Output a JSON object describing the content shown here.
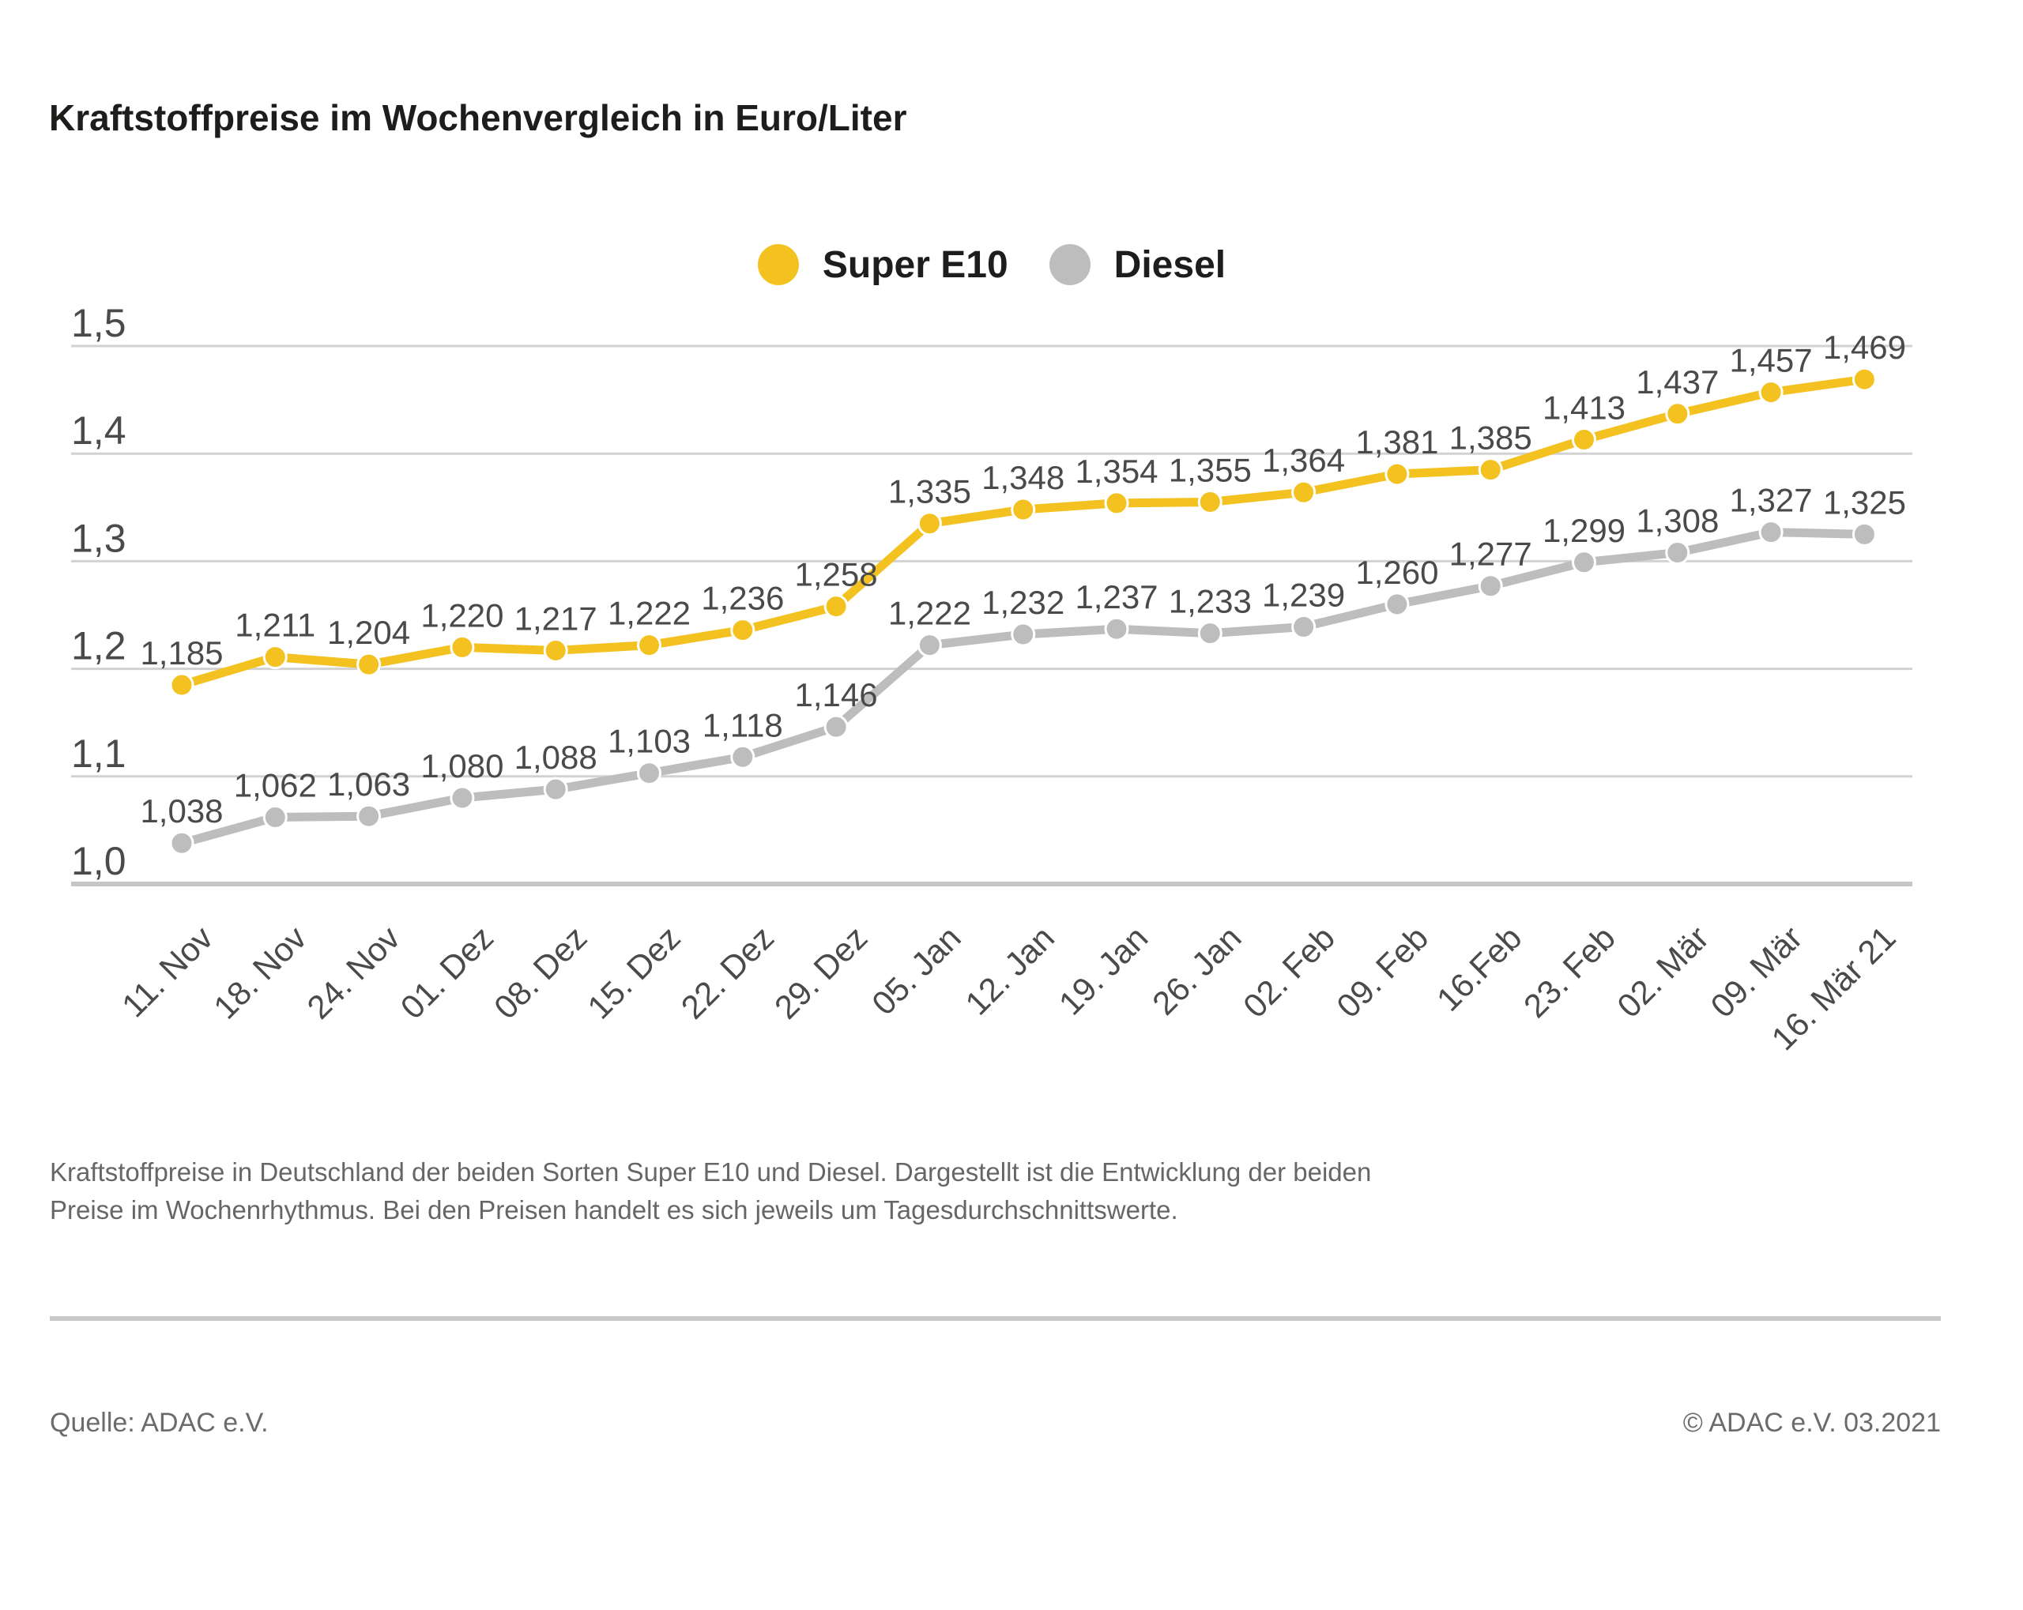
{
  "page": {
    "title": "Kraftstoffpreise im Wochenvergleich in Euro/Liter",
    "description": "Kraftstoffpreise in Deutschland der beiden Sorten Super E10 und Diesel. Dargestellt ist die Entwicklung der beiden Preise im Wochenrhythmus. Bei den Preisen handelt es sich jeweils um Tagesdurchschnittswerte.",
    "source": "Quelle: ADAC e.V.",
    "copyright": "© ADAC e.V. 03.2021"
  },
  "colors": {
    "super_e10": "#F3C220",
    "diesel": "#BDBDBD",
    "grid": "#D2D2D2",
    "axis": "#C6C6C6",
    "label_text": "#4A4A4A",
    "title_text": "#1D1D1B",
    "footer_text": "#6B6B6B"
  },
  "chart_data": {
    "type": "line",
    "title": "Kraftstoffpreise im Wochenvergleich in Euro/Liter",
    "xlabel": "",
    "ylabel": "Euro/Liter",
    "ylim": [
      1.0,
      1.5
    ],
    "ytick_step": 0.1,
    "ytick_labels": [
      "1,0",
      "1,1",
      "1,2",
      "1,3",
      "1,4",
      "1,5"
    ],
    "grid": true,
    "legend_position": "top-center",
    "decimal_separator": ",",
    "categories": [
      "11. Nov",
      "18. Nov",
      "24. Nov",
      "01. Dez",
      "08. Dez",
      "15. Dez",
      "22. Dez",
      "29. Dez",
      "05. Jan",
      "12. Jan",
      "19. Jan",
      "26. Jan",
      "02. Feb",
      "09. Feb",
      "16.Feb",
      "23. Feb",
      "02. Mär",
      "09. Mär",
      "16. Mär 21"
    ],
    "series": [
      {
        "name": "Super E10",
        "color": "#F3C220",
        "values": [
          1.185,
          1.211,
          1.204,
          1.22,
          1.217,
          1.222,
          1.236,
          1.258,
          1.335,
          1.348,
          1.354,
          1.355,
          1.364,
          1.381,
          1.385,
          1.413,
          1.437,
          1.457,
          1.469
        ],
        "point_labels": [
          "1,185",
          "1,211",
          "1,204",
          "1,220",
          "1,217",
          "1,222",
          "1,236",
          "1,258",
          "1,335",
          "1,348",
          "1,354",
          "1,355",
          "1,364",
          "1,381",
          "1,385",
          "1,413",
          "1,437",
          "1,457",
          "1,469"
        ]
      },
      {
        "name": "Diesel",
        "color": "#BDBDBD",
        "values": [
          1.038,
          1.062,
          1.063,
          1.08,
          1.088,
          1.103,
          1.118,
          1.146,
          1.222,
          1.232,
          1.237,
          1.233,
          1.239,
          1.26,
          1.277,
          1.299,
          1.308,
          1.327,
          1.325
        ],
        "point_labels": [
          "1,038",
          "1,062",
          "1,063",
          "1,080",
          "1,088",
          "1,103",
          "1,118",
          "1,146",
          "1,222",
          "1,232",
          "1,237",
          "1,233",
          "1,239",
          "1,260",
          "1,277",
          "1,299",
          "1,308",
          "1,327",
          "1,325"
        ]
      }
    ]
  }
}
